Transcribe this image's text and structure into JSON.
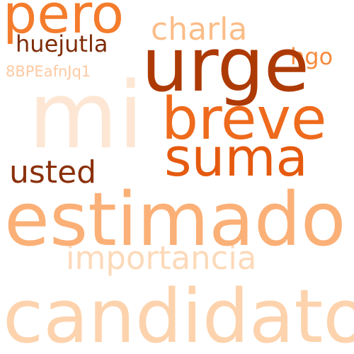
{
  "words": {
    "pero": {
      "text": "pero",
      "color": "#f47c2c"
    },
    "charla": {
      "text": "charla",
      "color": "#fbbd88"
    },
    "urge": {
      "text": "urge",
      "color": "#ad3a05"
    },
    "huejutla": {
      "text": "huejutla",
      "color": "#7e2c05"
    },
    "hgo": {
      "text": "hgo",
      "color": "#f58a3d"
    },
    "code": {
      "text": "8BPEafnJq1",
      "color": "#fcc9a2"
    },
    "mi": {
      "text": "mi",
      "color": "#fde7d4"
    },
    "breve": {
      "text": "breve",
      "color": "#ee6a1c"
    },
    "suma": {
      "text": "suma",
      "color": "#e55a0f"
    },
    "usted": {
      "text": "usted",
      "color": "#8a300a"
    },
    "estimado": {
      "text": "estimado",
      "color": "#fbb077"
    },
    "importancia": {
      "text": "importancia",
      "color": "#fdd9b8"
    },
    "candidato": {
      "text": "candidato",
      "color": "#fdd3ad"
    }
  }
}
